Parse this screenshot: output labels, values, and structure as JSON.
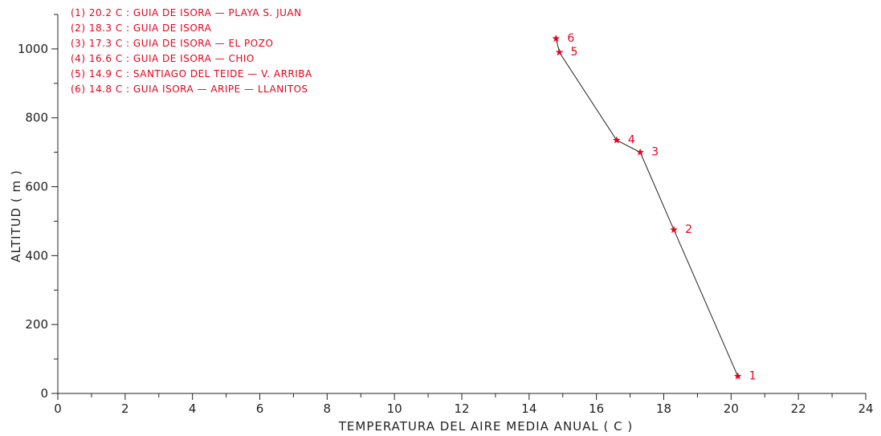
{
  "chart_data": {
    "type": "line",
    "xlabel": "TEMPERATURA DEL AIRE MEDIA ANUAL ( C )",
    "ylabel": "ALTITUD ( m )",
    "xlim": [
      0,
      24
    ],
    "ylim": [
      0,
      1100
    ],
    "x_ticks": [
      0,
      2,
      4,
      6,
      8,
      10,
      12,
      14,
      16,
      18,
      20,
      22,
      24
    ],
    "y_ticks": [
      0,
      200,
      400,
      600,
      800,
      1000
    ],
    "grid": false,
    "legend_position": "top-left",
    "colors": {
      "line": "#222222",
      "marker": "#e8001c",
      "text": "#e8001c",
      "axis": "#222222"
    },
    "points": [
      {
        "label": "1",
        "x": 20.2,
        "y": 50
      },
      {
        "label": "2",
        "x": 18.3,
        "y": 475
      },
      {
        "label": "3",
        "x": 17.3,
        "y": 700
      },
      {
        "label": "4",
        "x": 16.6,
        "y": 735
      },
      {
        "label": "5",
        "x": 14.9,
        "y": 990
      },
      {
        "label": "6",
        "x": 14.8,
        "y": 1030
      }
    ],
    "legend": [
      "(1) 20.2  C : GUIA DE ISORA — PLAYA S. JUAN",
      "(2) 18.3  C : GUIA DE ISORA",
      "(3) 17.3  C : GUIA DE ISORA — EL POZO",
      "(4) 16.6  C : GUIA DE ISORA — CHIO",
      "(5) 14.9  C : SANTIAGO DEL TEIDE — V. ARRIBA",
      "(6) 14.8  C : GUIA ISORA — ARIPE — LLANITOS"
    ]
  }
}
